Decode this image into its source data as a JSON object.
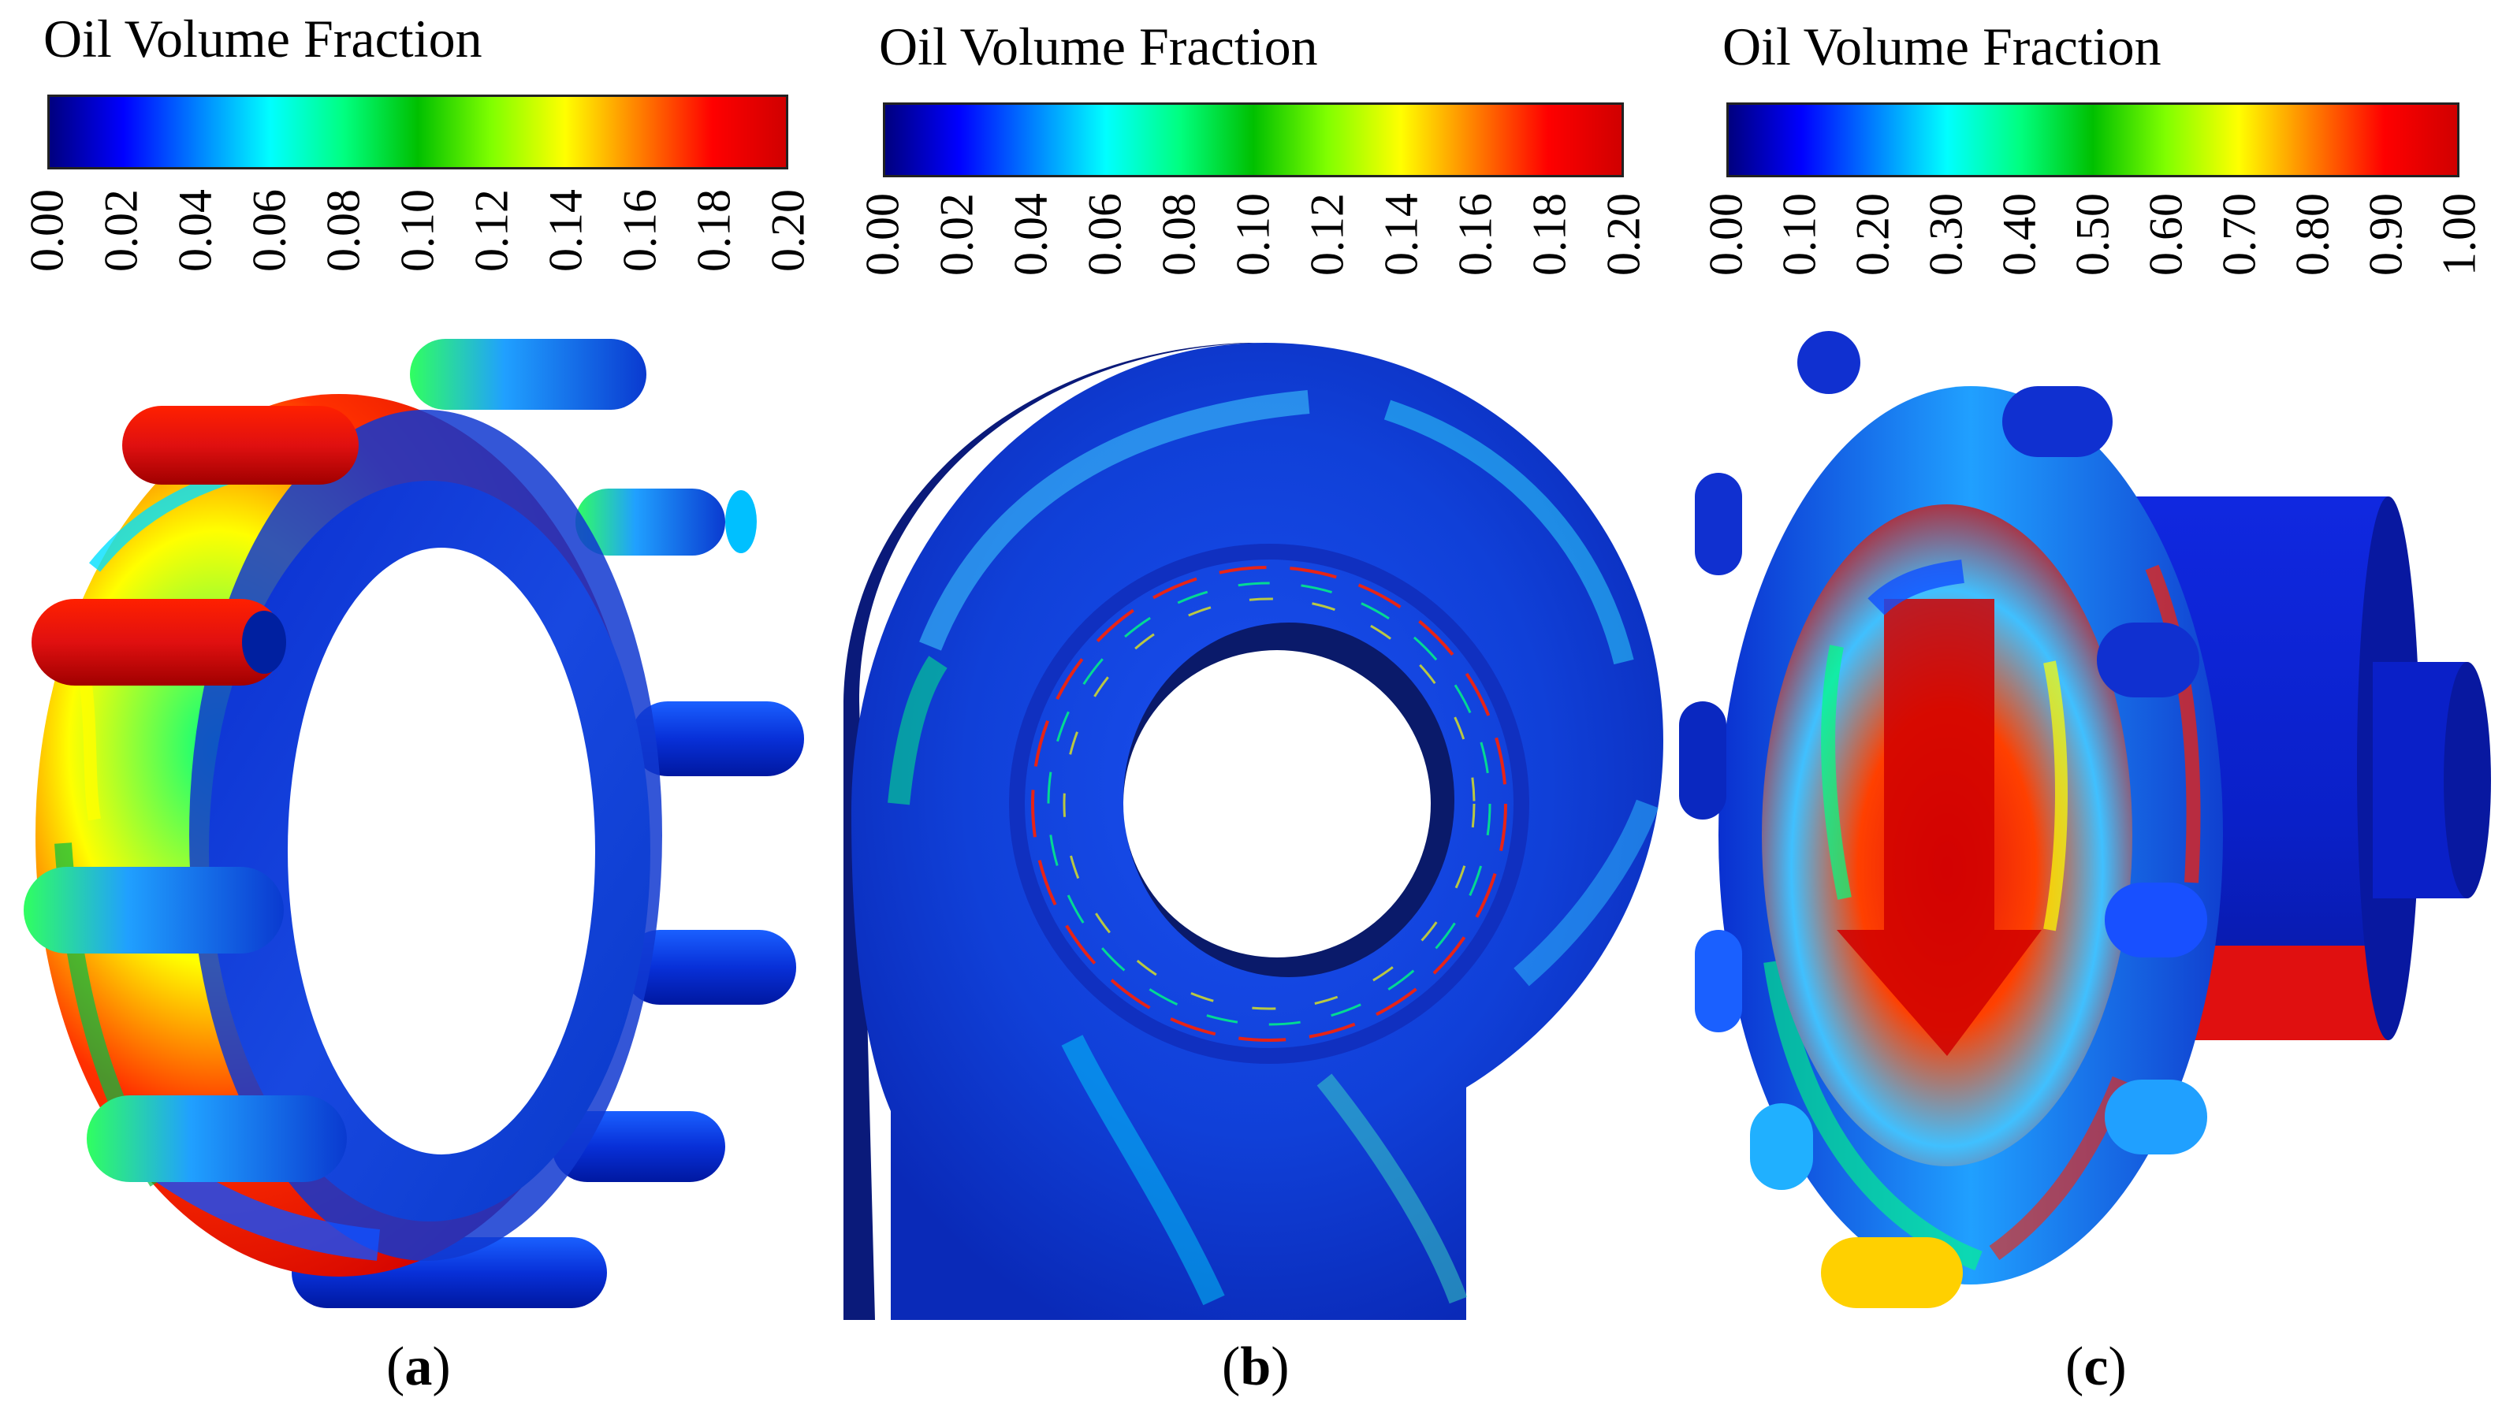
{
  "colors": {
    "jet": [
      "#00007f",
      "#0000ff",
      "#0080ff",
      "#00ffff",
      "#00ff80",
      "#00c000",
      "#80ff00",
      "#ffff00",
      "#ff8000",
      "#ff0000",
      "#d00000"
    ],
    "shell_blue": "#1030d0",
    "deep_blue": "#0a1a8a",
    "red": "#e01010"
  },
  "panels": [
    {
      "id": "a",
      "colorbar_title": "Oil Volume Fraction",
      "ticks": [
        "0.00",
        "0.02",
        "0.04",
        "0.06",
        "0.08",
        "0.10",
        "0.12",
        "0.14",
        "0.16",
        "0.18",
        "0.20"
      ],
      "caption_open": "(",
      "caption_letter": "a",
      "caption_close": ")"
    },
    {
      "id": "b",
      "colorbar_title": "Oil Volume Fraction",
      "ticks": [
        "0.00",
        "0.02",
        "0.04",
        "0.06",
        "0.08",
        "0.10",
        "0.12",
        "0.14",
        "0.16",
        "0.18",
        "0.20"
      ],
      "caption_open": "(",
      "caption_letter": "b",
      "caption_close": ")"
    },
    {
      "id": "c",
      "colorbar_title": "Oil Volume Fraction",
      "ticks": [
        "0.00",
        "0.10",
        "0.20",
        "0.30",
        "0.40",
        "0.50",
        "0.60",
        "0.70",
        "0.80",
        "0.90",
        "1.00"
      ],
      "caption_open": "(",
      "caption_letter": "c",
      "caption_close": ")"
    }
  ]
}
